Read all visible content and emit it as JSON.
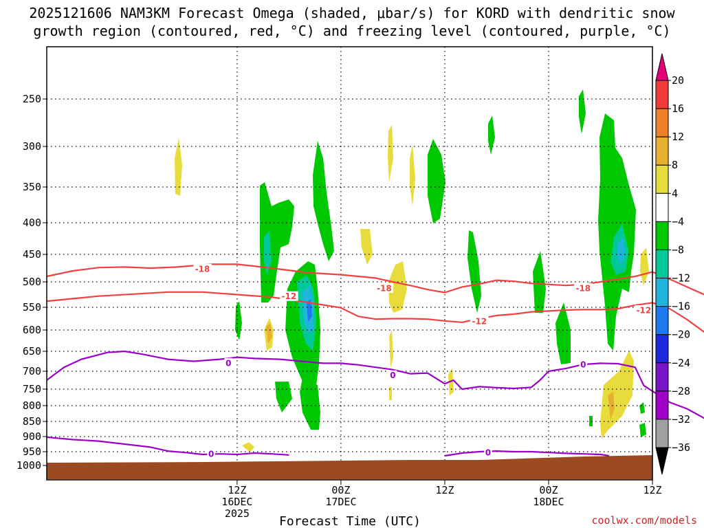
{
  "title_line1": "2025121606 NAM3KM Forecast Omega (shaded, μbar/s) for KORD with dendritic snow",
  "title_line2": "growth region (contoured, red, °C) and freezing level (contoured, purple, °C)",
  "credit": "coolwx.com/models",
  "chart_data": {
    "type": "heatmap",
    "xlabel": "Forecast Time (UTC)",
    "x_unit": "hours from 2025-12-16 00Z",
    "x_range": [
      -10,
      60
    ],
    "x_ticks": [
      {
        "hour": 12,
        "lines": [
          "12Z",
          "16DEC",
          "2025"
        ]
      },
      {
        "hour": 24,
        "lines": [
          "00Z",
          "17DEC"
        ]
      },
      {
        "hour": 36,
        "lines": [
          "12Z"
        ]
      },
      {
        "hour": 48,
        "lines": [
          "00Z",
          "18DEC"
        ]
      },
      {
        "hour": 60,
        "lines": [
          "12Z"
        ]
      }
    ],
    "y_unit": "hPa",
    "y_range": [
      1000,
      200
    ],
    "y_ticks": [
      250,
      300,
      350,
      400,
      450,
      500,
      550,
      600,
      650,
      700,
      750,
      800,
      850,
      900,
      950,
      1000
    ],
    "grid": "dotted horizontal at pressure ticks, dotted vertical at time ticks",
    "colorbar": {
      "levels": [
        20,
        16,
        12,
        8,
        4,
        -4,
        -8,
        -12,
        -16,
        -20,
        -24,
        -28,
        -32,
        -36
      ],
      "colors": [
        "#e8007a",
        "#f03c3c",
        "#f07f2a",
        "#e8b030",
        "#e8dc3c",
        "#ffffff",
        "#00c800",
        "#00c896",
        "#1eb4dc",
        "#1e78f0",
        "#1e28dc",
        "#7814c8",
        "#a000c8",
        "#a0a0a0",
        "#000000"
      ]
    },
    "contours": [
      {
        "name": "dgz_-18",
        "color": "#f04040",
        "label": "-18",
        "points": [
          [
            -10,
            490
          ],
          [
            -7,
            480
          ],
          [
            -4,
            474
          ],
          [
            -1,
            473
          ],
          [
            2,
            475
          ],
          [
            5,
            473
          ],
          [
            9,
            468
          ],
          [
            12,
            468
          ],
          [
            16,
            475
          ],
          [
            20,
            483
          ],
          [
            24,
            487
          ],
          [
            28,
            493
          ],
          [
            30,
            500
          ],
          [
            32,
            507
          ],
          [
            34,
            515
          ],
          [
            36,
            521
          ],
          [
            38,
            510
          ],
          [
            40,
            504
          ],
          [
            42,
            497
          ],
          [
            44,
            499
          ],
          [
            46,
            503
          ],
          [
            48,
            505
          ],
          [
            50,
            507
          ],
          [
            52,
            505
          ],
          [
            54,
            500
          ],
          [
            56,
            495
          ],
          [
            58,
            490
          ],
          [
            60,
            482
          ],
          [
            62,
            495
          ],
          [
            64,
            510
          ],
          [
            66,
            525
          ]
        ],
        "label_pos": [
          [
            8,
            476
          ],
          [
            29,
            512
          ],
          [
            52,
            512
          ]
        ]
      },
      {
        "name": "dgz_-12",
        "color": "#f04040",
        "label": "-12",
        "points": [
          [
            -10,
            538
          ],
          [
            -7,
            533
          ],
          [
            -4,
            528
          ],
          [
            0,
            524
          ],
          [
            4,
            520
          ],
          [
            8,
            520
          ],
          [
            12,
            525
          ],
          [
            16,
            530
          ],
          [
            20,
            540
          ],
          [
            24,
            551
          ],
          [
            26,
            570
          ],
          [
            28,
            576
          ],
          [
            30,
            575
          ],
          [
            32,
            575
          ],
          [
            34,
            576
          ],
          [
            36,
            580
          ],
          [
            38,
            583
          ],
          [
            40,
            575
          ],
          [
            42,
            568
          ],
          [
            44,
            565
          ],
          [
            46,
            560
          ],
          [
            48,
            558
          ],
          [
            50,
            556
          ],
          [
            52,
            555
          ],
          [
            54,
            555
          ],
          [
            56,
            553
          ],
          [
            58,
            546
          ],
          [
            60,
            541
          ],
          [
            62,
            553
          ],
          [
            64,
            577
          ],
          [
            66,
            605
          ]
        ],
        "label_pos": [
          [
            18,
            528
          ],
          [
            40,
            580
          ],
          [
            59,
            556
          ]
        ]
      },
      {
        "name": "freeze_upper",
        "color": "#9a00c8",
        "label": "0",
        "points": [
          [
            -10,
            725
          ],
          [
            -8,
            690
          ],
          [
            -6,
            670
          ],
          [
            -3,
            653
          ],
          [
            -1,
            650
          ],
          [
            1,
            657
          ],
          [
            4,
            670
          ],
          [
            7,
            675
          ],
          [
            10,
            670
          ],
          [
            12,
            665
          ],
          [
            14,
            668
          ],
          [
            17,
            670
          ],
          [
            20,
            676
          ],
          [
            22,
            680
          ],
          [
            24,
            680
          ],
          [
            26,
            684
          ],
          [
            28,
            690
          ],
          [
            30,
            696
          ],
          [
            32,
            707
          ],
          [
            34,
            705
          ],
          [
            35,
            720
          ],
          [
            36,
            735
          ],
          [
            37,
            725
          ],
          [
            38,
            750
          ],
          [
            40,
            743
          ],
          [
            42,
            746
          ],
          [
            44,
            748
          ],
          [
            46,
            745
          ],
          [
            47,
            725
          ],
          [
            48,
            700
          ],
          [
            50,
            693
          ],
          [
            52,
            683
          ],
          [
            54,
            680
          ],
          [
            56,
            681
          ],
          [
            58,
            690
          ],
          [
            59,
            740
          ],
          [
            62,
            790
          ],
          [
            64,
            810
          ],
          [
            66,
            840
          ]
        ],
        "label_pos": [
          [
            11,
            679
          ],
          [
            30,
            711
          ],
          [
            52,
            683
          ]
        ]
      },
      {
        "name": "freeze_lower",
        "color": "#9a00c8",
        "label": "0",
        "points": [
          [
            -10,
            902
          ],
          [
            -7,
            910
          ],
          [
            -4,
            915
          ],
          [
            -1,
            925
          ],
          [
            2,
            935
          ],
          [
            4,
            948
          ],
          [
            6,
            953
          ],
          [
            8,
            960
          ],
          [
            10,
            958
          ],
          [
            12,
            960
          ],
          [
            14,
            955
          ],
          [
            16,
            958
          ],
          [
            18,
            962
          ]
        ],
        "label_pos": [
          [
            9,
            958
          ]
        ]
      },
      {
        "name": "freeze_lower2",
        "color": "#9a00c8",
        "label": "0",
        "points": [
          [
            36,
            965
          ],
          [
            38,
            955
          ],
          [
            40,
            950
          ],
          [
            42,
            948
          ],
          [
            44,
            950
          ],
          [
            46,
            950
          ],
          [
            48,
            953
          ],
          [
            50,
            956
          ],
          [
            52,
            958
          ],
          [
            54,
            960
          ],
          [
            55,
            965
          ]
        ],
        "label_pos": [
          [
            41,
            952
          ]
        ]
      }
    ],
    "terrain_top_hPa": 985
  }
}
